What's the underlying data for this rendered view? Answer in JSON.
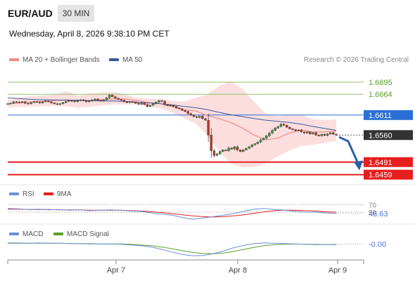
{
  "header": {
    "pair": "EUR/AUD",
    "timeframe": "30 MIN",
    "datetime": "Wednesday, April 8, 2026 9:38:10 PM CET"
  },
  "legend": {
    "ma20": "MA 20 + Bollinger Bands",
    "ma50": "MA 50",
    "credit": "Research © 2026 Trading Central"
  },
  "colors": {
    "up_candle": "#3a9a48",
    "down_candle": "#c0392b",
    "ma20": "#f28b82",
    "ma50": "#3a5b9a",
    "bollinger_fill": "#fbd3d3",
    "resistance": "#8cc56a",
    "pivot": "#2a6fd4",
    "support": "#e61e1e",
    "current": "#333333",
    "rsi": "#6a8fd8",
    "rsi_ma": "#e61e1e",
    "macd": "#6a8fd8",
    "macd_signal": "#5aa02c"
  },
  "chart_data": [
    {
      "type": "candlestick",
      "title": "EUR/AUD 30 MIN",
      "x_tick_labels": [
        "Apr 7",
        "Apr 8",
        "Apr 9"
      ],
      "ylim": [
        1.6435,
        1.672
      ],
      "series": [
        {
          "name": "MA 20 + Bollinger Bands"
        },
        {
          "name": "MA 50"
        }
      ],
      "closes": [
        1.664,
        1.6641,
        1.6645,
        1.6644,
        1.6643,
        1.6645,
        1.6641,
        1.664,
        1.6643,
        1.6645,
        1.6644,
        1.6642,
        1.6645,
        1.6647,
        1.6645,
        1.6642,
        1.664,
        1.6638,
        1.664,
        1.6643,
        1.6646,
        1.6648,
        1.6647,
        1.6645,
        1.6648,
        1.665,
        1.6648,
        1.6645,
        1.6647,
        1.665,
        1.6652,
        1.6649,
        1.6647,
        1.665,
        1.6655,
        1.6662,
        1.6658,
        1.6654,
        1.6651,
        1.6649,
        1.6645,
        1.6643,
        1.6645,
        1.6644,
        1.6641,
        1.6639,
        1.6642,
        1.6638,
        1.6633,
        1.6636,
        1.664,
        1.6644,
        1.6648,
        1.6646,
        1.6638,
        1.6635,
        1.6636,
        1.6633,
        1.6629,
        1.6627,
        1.6623,
        1.662,
        1.6615,
        1.6611,
        1.6607,
        1.6605,
        1.6608,
        1.6602,
        1.6598,
        1.656,
        1.652,
        1.6508,
        1.6512,
        1.6518,
        1.6522,
        1.652,
        1.6527,
        1.6524,
        1.653,
        1.6522,
        1.6518,
        1.6522,
        1.6526,
        1.653,
        1.6535,
        1.6538,
        1.6542,
        1.6548,
        1.6552,
        1.6558,
        1.6565,
        1.6572,
        1.6578,
        1.6582,
        1.6588,
        1.6585,
        1.658,
        1.6576,
        1.6574,
        1.6571,
        1.6573,
        1.6568,
        1.6565,
        1.6568,
        1.6563,
        1.6566,
        1.656,
        1.6558,
        1.6562,
        1.6559,
        1.6563,
        1.6566,
        1.6562,
        1.656
      ],
      "bollinger_upper": [
        1.665,
        1.6655,
        1.666,
        1.6661,
        1.6663,
        1.6672,
        1.666,
        1.6666,
        1.6668,
        1.667,
        1.6665,
        1.6655,
        1.6653,
        1.6652,
        1.6648,
        1.6645,
        1.6655,
        1.6663,
        1.6685,
        1.6698,
        1.6678,
        1.6645,
        1.6615,
        1.6608,
        1.6612,
        1.6612,
        1.66,
        1.6598,
        1.66
      ],
      "bollinger_lower": [
        1.663,
        1.6632,
        1.6633,
        1.6634,
        1.6634,
        1.6633,
        1.663,
        1.6632,
        1.6635,
        1.6638,
        1.6638,
        1.6638,
        1.6633,
        1.6628,
        1.6618,
        1.6603,
        1.659,
        1.656,
        1.652,
        1.6487,
        1.6478,
        1.6478,
        1.6488,
        1.6505,
        1.652,
        1.6532,
        1.6535,
        1.654,
        1.6545
      ],
      "ma20": [
        1.664,
        1.6642,
        1.6645,
        1.6646,
        1.6648,
        1.665,
        1.6648,
        1.6648,
        1.665,
        1.6652,
        1.6652,
        1.6648,
        1.6643,
        1.664,
        1.6633,
        1.6624,
        1.6622,
        1.661,
        1.6602,
        1.6592,
        1.6578,
        1.656,
        1.6548,
        1.6552,
        1.6565,
        1.6573,
        1.6568,
        1.6568,
        1.657
      ],
      "ma50": [
        1.6655,
        1.6653,
        1.6651,
        1.665,
        1.665,
        1.6649,
        1.6649,
        1.6648,
        1.6647,
        1.6647,
        1.6646,
        1.6644,
        1.6642,
        1.664,
        1.6637,
        1.6633,
        1.663,
        1.6625,
        1.6618,
        1.6612,
        1.6607,
        1.6602,
        1.6598,
        1.6595,
        1.6592,
        1.6588,
        1.6582,
        1.6577,
        1.6572
      ],
      "levels": [
        {
          "value": 1.6695,
          "label": "1.6695",
          "kind": "resistance"
        },
        {
          "value": 1.6664,
          "label": "1.6664",
          "kind": "resistance"
        },
        {
          "value": 1.6611,
          "label": "1.6611",
          "kind": "pivot"
        },
        {
          "value": 1.656,
          "label": "1.6560",
          "kind": "current"
        },
        {
          "value": 1.6491,
          "label": "1.6491",
          "kind": "support"
        },
        {
          "value": 1.6459,
          "label": "1.6459",
          "kind": "support"
        }
      ],
      "forecast_arrow": {
        "from": 1.6555,
        "to": 1.647
      }
    },
    {
      "type": "line",
      "title": "RSI",
      "series": [
        {
          "name": "RSI",
          "values": [
            60,
            59,
            57,
            58,
            56,
            57,
            55,
            56,
            54,
            55,
            56,
            55,
            53,
            52,
            48,
            45,
            42,
            36,
            31,
            34,
            38,
            42,
            46,
            52,
            58,
            60,
            57,
            55,
            52,
            50,
            50,
            48,
            46.63
          ]
        },
        {
          "name": "9MA",
          "values": [
            58,
            58,
            57,
            57,
            57,
            56,
            56,
            56,
            55,
            55,
            55,
            55,
            54,
            53,
            51,
            49,
            46,
            43,
            40,
            38,
            37,
            38,
            40,
            43,
            47,
            51,
            54,
            55,
            55,
            54,
            53,
            51,
            50
          ]
        }
      ],
      "levels": [
        70,
        50
      ],
      "level_labels": [
        "70",
        "50"
      ],
      "current_value": 46.63,
      "current_label": "46.63",
      "ylim": [
        20,
        80
      ]
    },
    {
      "type": "line",
      "title": "MACD",
      "series": [
        {
          "name": "MACD",
          "values": [
            0.0004,
            0.0004,
            0.0003,
            0.0004,
            0.0003,
            0.0003,
            0.0002,
            0.0002,
            0.0001,
            0.0001,
            0.0001,
            0.0,
            -0.0002,
            -0.0004,
            -0.0008,
            -0.0015,
            -0.0023,
            -0.003,
            -0.0034,
            -0.0033,
            -0.0028,
            -0.002,
            -0.001,
            -0.0003,
            0.0002,
            0.0004,
            0.0003,
            0.0002,
            0.0001,
            0.0,
            -0.0001,
            -0.0001,
            0.0
          ]
        },
        {
          "name": "MACD Signal",
          "values": [
            0.0003,
            0.0003,
            0.0003,
            0.0003,
            0.0003,
            0.0003,
            0.0002,
            0.0002,
            0.0002,
            0.0001,
            0.0001,
            0.0001,
            0.0,
            -0.0002,
            -0.0004,
            -0.0008,
            -0.0013,
            -0.0019,
            -0.0024,
            -0.0027,
            -0.0028,
            -0.0026,
            -0.0021,
            -0.0015,
            -0.0009,
            -0.0004,
            -0.0001,
            0.0,
            0.0001,
            0.0,
            0.0,
            -0.0001,
            -0.0001
          ]
        }
      ],
      "current_label": "-0.00",
      "ylim": [
        -0.0042,
        0.0016
      ]
    }
  ],
  "rsi_legend": {
    "rsi": "RSI",
    "ma": "9MA"
  },
  "macd_legend": {
    "macd": "MACD",
    "signal": "MACD Signal"
  }
}
